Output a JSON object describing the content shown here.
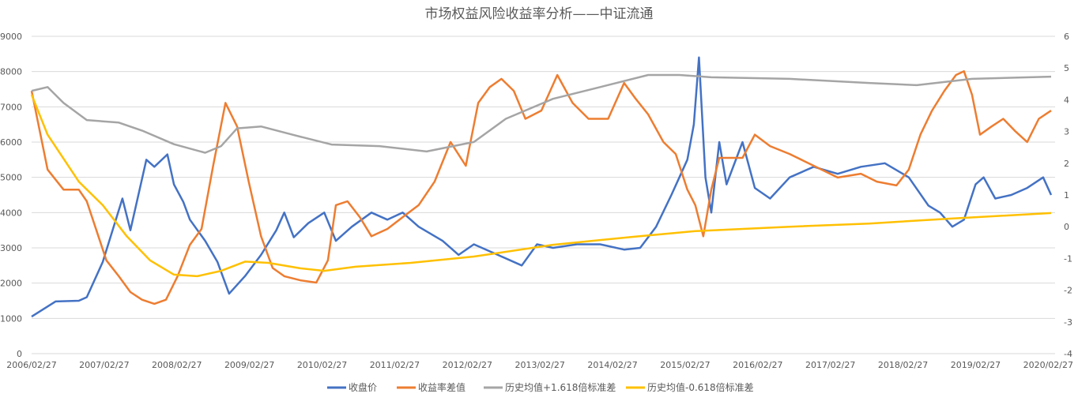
{
  "chart_data": {
    "type": "line",
    "title": "市场权益风险收益率分析——中证流通",
    "x_unit": "years since 2006/02/27",
    "xlim": [
      0,
      14.04
    ],
    "x_ticks": [
      "2006/02/27",
      "2007/02/27",
      "2008/02/27",
      "2009/02/27",
      "2010/02/27",
      "2011/02/27",
      "2012/02/27",
      "2013/02/27",
      "2014/02/27",
      "2015/02/27",
      "2016/02/27",
      "2017/02/27",
      "2018/02/27",
      "2019/02/27",
      "2020/02/27"
    ],
    "y_left": {
      "ylim": [
        0,
        9000
      ],
      "ticks": [
        "0",
        "1000",
        "2000",
        "3000",
        "4000",
        "5000",
        "6000",
        "7000",
        "8000",
        "9000"
      ]
    },
    "y_right": {
      "ylim": [
        -4,
        6
      ],
      "ticks": [
        "-4",
        "-3",
        "-2",
        "-1",
        "0",
        "1",
        "2",
        "3",
        "4",
        "5",
        "6"
      ]
    },
    "grid": true,
    "legend_position": "bottom",
    "series": [
      {
        "name": "收盘价",
        "axis": "left",
        "color": "#4472c4",
        "x": [
          0,
          0.33,
          0.65,
          0.76,
          0.98,
          1.25,
          1.36,
          1.58,
          1.69,
          1.87,
          1.96,
          2.09,
          2.18,
          2.39,
          2.56,
          2.72,
          2.94,
          3.16,
          3.37,
          3.48,
          3.61,
          3.81,
          4.03,
          4.19,
          4.41,
          4.68,
          4.9,
          5.11,
          5.33,
          5.66,
          5.88,
          6.09,
          6.42,
          6.75,
          6.96,
          7.18,
          7.51,
          7.83,
          8.16,
          8.38,
          8.6,
          8.81,
          8.92,
          9.03,
          9.12,
          9.19,
          9.28,
          9.36,
          9.47,
          9.57,
          9.79,
          9.96,
          10.17,
          10.44,
          10.77,
          11.1,
          11.42,
          11.75,
          12.08,
          12.35,
          12.51,
          12.68,
          12.84,
          13.0,
          13.11,
          13.27,
          13.49,
          13.71,
          13.93,
          14.04
        ],
        "y": [
          1050,
          1480,
          1500,
          1600,
          2600,
          4400,
          3500,
          5500,
          5300,
          5650,
          4800,
          4300,
          3800,
          3200,
          2600,
          1700,
          2200,
          2800,
          3500,
          4000,
          3300,
          3700,
          4000,
          3200,
          3600,
          4000,
          3800,
          4000,
          3600,
          3200,
          2800,
          3100,
          2800,
          2500,
          3100,
          3000,
          3100,
          3100,
          2950,
          3000,
          3600,
          4500,
          5000,
          5500,
          6500,
          8400,
          5000,
          4000,
          6000,
          4800,
          6000,
          4700,
          4400,
          5000,
          5300,
          5100,
          5300,
          5400,
          5000,
          4200,
          4000,
          3600,
          3800,
          4800,
          5000,
          4400,
          4500,
          4700,
          5000,
          4500
        ]
      },
      {
        "name": "收益率差值",
        "axis": "right",
        "color": "#ed7d31",
        "x": [
          0,
          0.22,
          0.44,
          0.65,
          0.76,
          0.92,
          1.03,
          1.2,
          1.36,
          1.52,
          1.69,
          1.85,
          2.01,
          2.18,
          2.34,
          2.5,
          2.67,
          2.83,
          2.99,
          3.16,
          3.32,
          3.48,
          3.7,
          3.92,
          4.08,
          4.19,
          4.35,
          4.52,
          4.68,
          4.9,
          5.11,
          5.33,
          5.55,
          5.77,
          5.98,
          6.15,
          6.31,
          6.47,
          6.64,
          6.8,
          7.02,
          7.24,
          7.45,
          7.67,
          7.94,
          8.16,
          8.32,
          8.49,
          8.7,
          8.87,
          9.03,
          9.14,
          9.25,
          9.36,
          9.47,
          9.63,
          9.79,
          9.96,
          10.17,
          10.44,
          10.77,
          11.1,
          11.42,
          11.64,
          11.91,
          12.08,
          12.24,
          12.4,
          12.57,
          12.73,
          12.84,
          12.95,
          13.06,
          13.22,
          13.38,
          13.55,
          13.71,
          13.87,
          14.04
        ],
        "y": [
          4.28,
          1.8,
          1.17,
          1.17,
          0.8,
          -0.3,
          -1.06,
          -1.56,
          -2.06,
          -2.3,
          -2.43,
          -2.3,
          -1.56,
          -0.57,
          -0.07,
          1.92,
          3.9,
          3.16,
          1.42,
          -0.3,
          -1.3,
          -1.56,
          -1.69,
          -1.76,
          -1.06,
          0.68,
          0.8,
          0.3,
          -0.3,
          -0.07,
          0.3,
          0.68,
          1.42,
          2.67,
          1.92,
          3.9,
          4.4,
          4.66,
          4.28,
          3.4,
          3.66,
          4.78,
          3.9,
          3.4,
          3.4,
          4.53,
          4.03,
          3.54,
          2.67,
          2.29,
          1.17,
          0.68,
          -0.3,
          1.17,
          2.17,
          2.17,
          2.17,
          2.9,
          2.54,
          2.29,
          1.92,
          1.55,
          1.67,
          1.42,
          1.3,
          1.8,
          2.9,
          3.66,
          4.28,
          4.78,
          4.9,
          4.16,
          2.9,
          3.16,
          3.4,
          3.0,
          2.67,
          3.4,
          3.66
        ]
      },
      {
        "name": "历史均值+1.618倍标准差",
        "axis": "right",
        "color": "#a5a5a5",
        "x": [
          0,
          0.22,
          0.44,
          0.76,
          1.2,
          1.52,
          1.96,
          2.39,
          2.61,
          2.83,
          3.16,
          3.59,
          4.13,
          4.79,
          5.44,
          6.09,
          6.53,
          7.18,
          7.83,
          8.49,
          8.92,
          9.36,
          10.44,
          11.53,
          12.19,
          12.95,
          14.04
        ],
        "y": [
          4.28,
          4.4,
          3.9,
          3.36,
          3.28,
          3.03,
          2.6,
          2.33,
          2.54,
          3.1,
          3.16,
          2.9,
          2.59,
          2.54,
          2.37,
          2.67,
          3.4,
          4.03,
          4.4,
          4.78,
          4.78,
          4.71,
          4.66,
          4.53,
          4.46,
          4.66,
          4.73
        ]
      },
      {
        "name": "历史均值-0.618倍标准差",
        "axis": "right",
        "color": "#ffc000",
        "x": [
          0,
          0.22,
          0.65,
          0.98,
          1.31,
          1.63,
          1.96,
          2.28,
          2.61,
          2.94,
          3.26,
          3.7,
          4.03,
          4.46,
          5.22,
          6.09,
          7.18,
          8.27,
          9.14,
          10.44,
          11.53,
          12.62,
          14.04
        ],
        "y": [
          4.16,
          2.9,
          1.42,
          0.68,
          -0.3,
          -1.06,
          -1.51,
          -1.56,
          -1.39,
          -1.1,
          -1.14,
          -1.31,
          -1.39,
          -1.26,
          -1.14,
          -0.94,
          -0.57,
          -0.32,
          -0.14,
          0.0,
          0.1,
          0.25,
          0.43
        ]
      }
    ]
  }
}
